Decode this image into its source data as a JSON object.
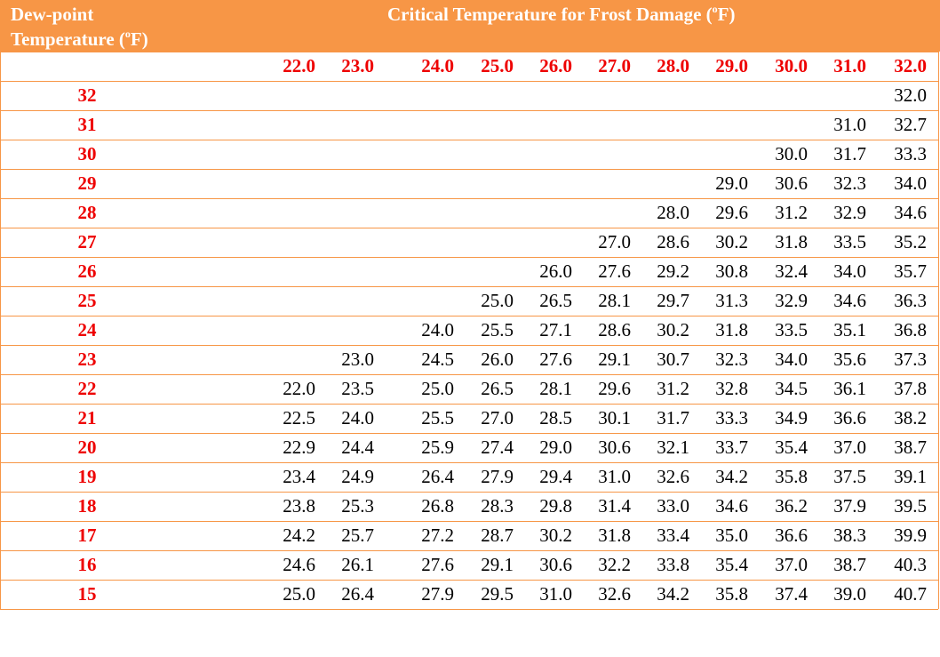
{
  "header": {
    "row_label": {
      "line1": "Dew-point",
      "line2_pre": "Temperature (",
      "line2_sup": "o",
      "line2_post": "F)"
    },
    "title": {
      "pre": "Critical Temperature for Frost Damage (",
      "sup": "o",
      "post": "F)"
    }
  },
  "table": {
    "columns": [
      "22.0",
      "23.0",
      "24.0",
      "25.0",
      "26.0",
      "27.0",
      "28.0",
      "29.0",
      "30.0",
      "31.0",
      "32.0"
    ],
    "rows": [
      {
        "dew": "32",
        "cells": [
          null,
          null,
          null,
          null,
          null,
          null,
          null,
          null,
          null,
          null,
          "32.0"
        ]
      },
      {
        "dew": "31",
        "cells": [
          null,
          null,
          null,
          null,
          null,
          null,
          null,
          null,
          null,
          "31.0",
          "32.7"
        ]
      },
      {
        "dew": "30",
        "cells": [
          null,
          null,
          null,
          null,
          null,
          null,
          null,
          null,
          "30.0",
          "31.7",
          "33.3"
        ]
      },
      {
        "dew": "29",
        "cells": [
          null,
          null,
          null,
          null,
          null,
          null,
          null,
          "29.0",
          "30.6",
          "32.3",
          "34.0"
        ]
      },
      {
        "dew": "28",
        "cells": [
          null,
          null,
          null,
          null,
          null,
          null,
          "28.0",
          "29.6",
          "31.2",
          "32.9",
          "34.6"
        ]
      },
      {
        "dew": "27",
        "cells": [
          null,
          null,
          null,
          null,
          null,
          "27.0",
          "28.6",
          "30.2",
          "31.8",
          "33.5",
          "35.2"
        ]
      },
      {
        "dew": "26",
        "cells": [
          null,
          null,
          null,
          null,
          "26.0",
          "27.6",
          "29.2",
          "30.8",
          "32.4",
          "34.0",
          "35.7"
        ]
      },
      {
        "dew": "25",
        "cells": [
          null,
          null,
          null,
          "25.0",
          "26.5",
          "28.1",
          "29.7",
          "31.3",
          "32.9",
          "34.6",
          "36.3"
        ]
      },
      {
        "dew": "24",
        "cells": [
          null,
          null,
          "24.0",
          "25.5",
          "27.1",
          "28.6",
          "30.2",
          "31.8",
          "33.5",
          "35.1",
          "36.8"
        ]
      },
      {
        "dew": "23",
        "cells": [
          null,
          "23.0",
          "24.5",
          "26.0",
          "27.6",
          "29.1",
          "30.7",
          "32.3",
          "34.0",
          "35.6",
          "37.3"
        ]
      },
      {
        "dew": "22",
        "cells": [
          "22.0",
          "23.5",
          "25.0",
          "26.5",
          "28.1",
          "29.6",
          "31.2",
          "32.8",
          "34.5",
          "36.1",
          "37.8"
        ]
      },
      {
        "dew": "21",
        "cells": [
          "22.5",
          "24.0",
          "25.5",
          "27.0",
          "28.5",
          "30.1",
          "31.7",
          "33.3",
          "34.9",
          "36.6",
          "38.2"
        ]
      },
      {
        "dew": "20",
        "cells": [
          "22.9",
          "24.4",
          "25.9",
          "27.4",
          "29.0",
          "30.6",
          "32.1",
          "33.7",
          "35.4",
          "37.0",
          "38.7"
        ]
      },
      {
        "dew": "19",
        "cells": [
          "23.4",
          "24.9",
          "26.4",
          "27.9",
          "29.4",
          "31.0",
          "32.6",
          "34.2",
          "35.8",
          "37.5",
          "39.1"
        ]
      },
      {
        "dew": "18",
        "cells": [
          "23.8",
          "25.3",
          "26.8",
          "28.3",
          "29.8",
          "31.4",
          "33.0",
          "34.6",
          "36.2",
          "37.9",
          "39.5"
        ]
      },
      {
        "dew": "17",
        "cells": [
          "24.2",
          "25.7",
          "27.2",
          "28.7",
          "30.2",
          "31.8",
          "33.4",
          "35.0",
          "36.6",
          "38.3",
          "39.9"
        ]
      },
      {
        "dew": "16",
        "cells": [
          "24.6",
          "26.1",
          "27.6",
          "29.1",
          "30.6",
          "32.2",
          "33.8",
          "35.4",
          "37.0",
          "38.7",
          "40.3"
        ]
      },
      {
        "dew": "15",
        "cells": [
          "25.0",
          "26.4",
          "27.9",
          "29.5",
          "31.0",
          "32.6",
          "34.2",
          "35.8",
          "37.4",
          "39.0",
          "40.7"
        ]
      }
    ]
  }
}
